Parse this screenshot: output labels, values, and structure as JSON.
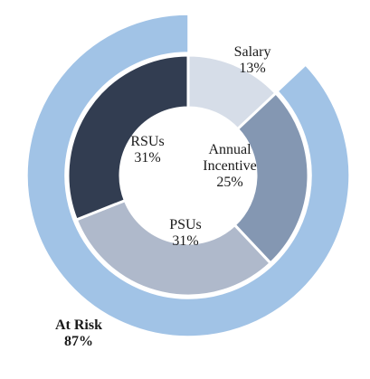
{
  "chart_data": {
    "type": "pie",
    "variant": "nested-donut",
    "outer_ring": {
      "slices": [
        {
          "name": "At Risk",
          "label_lines": [
            "At Risk",
            "87%"
          ],
          "value": 87,
          "color": "#a1c3e6",
          "bold": true
        }
      ],
      "gap_start": {
        "name": "Salary gap",
        "value": 13
      }
    },
    "inner_ring": {
      "slices": [
        {
          "name": "Salary",
          "label_lines": [
            "Salary",
            "13%"
          ],
          "value": 13,
          "color": "#d6dde8"
        },
        {
          "name": "Annual Incentive",
          "label_lines": [
            "Annual",
            "Incentive",
            "25%"
          ],
          "value": 25,
          "color": "#8497b2"
        },
        {
          "name": "PSUs",
          "label_lines": [
            "PSUs",
            "31%"
          ],
          "value": 31,
          "color": "#afb9cb"
        },
        {
          "name": "RSUs",
          "label_lines": [
            "RSUs",
            "31%"
          ],
          "value": 31,
          "color": "#323d51"
        }
      ]
    },
    "legend": "none"
  }
}
